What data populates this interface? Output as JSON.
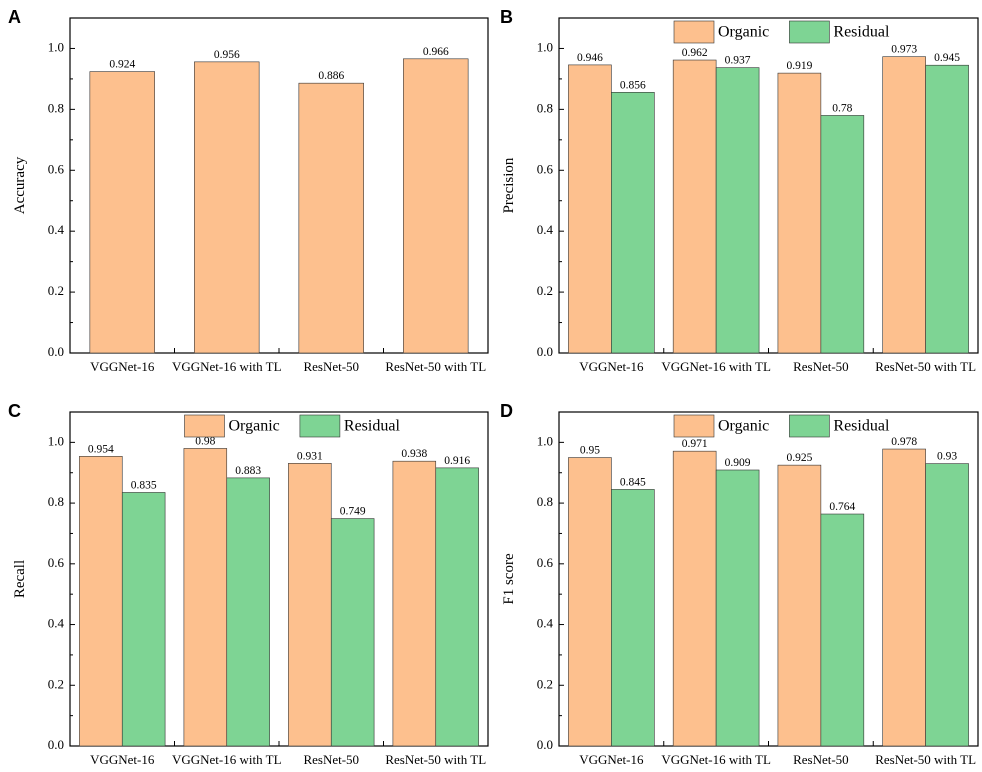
{
  "colors": {
    "organic": "#FDC08E",
    "residual": "#7ED494",
    "axis": "#000000"
  },
  "chart_data": [
    {
      "panel": "A",
      "type": "bar",
      "title": "",
      "xlabel": "",
      "ylabel": "Accuracy",
      "ylim": [
        0,
        1.1
      ],
      "yticks": [
        "0.0",
        "0.2",
        "0.4",
        "0.6",
        "0.8",
        "1.0"
      ],
      "categories": [
        "VGGNet-16",
        "VGGNet-16 with TL",
        "ResNet-50",
        "ResNet-50 with TL"
      ],
      "series": [
        {
          "name": "Accuracy",
          "color": "#FDC08E",
          "values": [
            0.924,
            0.956,
            0.886,
            0.966
          ],
          "labels": [
            "0.924",
            "0.956",
            "0.886",
            "0.966"
          ]
        }
      ],
      "legend": []
    },
    {
      "panel": "B",
      "type": "bar",
      "title": "",
      "xlabel": "",
      "ylabel": "Precision",
      "ylim": [
        0,
        1.1
      ],
      "yticks": [
        "0.0",
        "0.2",
        "0.4",
        "0.6",
        "0.8",
        "1.0"
      ],
      "categories": [
        "VGGNet-16",
        "VGGNet-16 with TL",
        "ResNet-50",
        "ResNet-50 with TL"
      ],
      "series": [
        {
          "name": "Organic",
          "color": "#FDC08E",
          "values": [
            0.946,
            0.962,
            0.919,
            0.973
          ],
          "labels": [
            "0.946",
            "0.962",
            "0.919",
            "0.973"
          ]
        },
        {
          "name": "Residual",
          "color": "#7ED494",
          "values": [
            0.856,
            0.937,
            0.78,
            0.945
          ],
          "labels": [
            "0.856",
            "0.937",
            "0.78",
            "0.945"
          ]
        }
      ],
      "legend": [
        "Organic",
        "Residual"
      ],
      "legend_position": "top-center"
    },
    {
      "panel": "C",
      "type": "bar",
      "title": "",
      "xlabel": "",
      "ylabel": "Recall",
      "ylim": [
        0,
        1.1
      ],
      "yticks": [
        "0.0",
        "0.2",
        "0.4",
        "0.6",
        "0.8",
        "1.0"
      ],
      "categories": [
        "VGGNet-16",
        "VGGNet-16 with TL",
        "ResNet-50",
        "ResNet-50 with TL"
      ],
      "series": [
        {
          "name": "Organic",
          "color": "#FDC08E",
          "values": [
            0.954,
            0.98,
            0.931,
            0.938
          ],
          "labels": [
            "0.954",
            "0.98",
            "0.931",
            "0.938"
          ]
        },
        {
          "name": "Residual",
          "color": "#7ED494",
          "values": [
            0.835,
            0.883,
            0.749,
            0.916
          ],
          "labels": [
            "0.835",
            "0.883",
            "0.749",
            "0.916"
          ]
        }
      ],
      "legend": [
        "Organic",
        "Residual"
      ],
      "legend_position": "top-center"
    },
    {
      "panel": "D",
      "type": "bar",
      "title": "",
      "xlabel": "",
      "ylabel": "F1  score",
      "ylim": [
        0,
        1.1
      ],
      "yticks": [
        "0.0",
        "0.2",
        "0.4",
        "0.6",
        "0.8",
        "1.0"
      ],
      "categories": [
        "VGGNet-16",
        "VGGNet-16 with TL",
        "ResNet-50",
        "ResNet-50 with TL"
      ],
      "series": [
        {
          "name": "Organic",
          "color": "#FDC08E",
          "values": [
            0.95,
            0.971,
            0.925,
            0.978
          ],
          "labels": [
            "0.95",
            "0.971",
            "0.925",
            "0.978"
          ]
        },
        {
          "name": "Residual",
          "color": "#7ED494",
          "values": [
            0.845,
            0.909,
            0.764,
            0.93
          ],
          "labels": [
            "0.845",
            "0.909",
            "0.764",
            "0.93"
          ]
        }
      ],
      "legend": [
        "Organic",
        "Residual"
      ],
      "legend_position": "top-center"
    }
  ]
}
